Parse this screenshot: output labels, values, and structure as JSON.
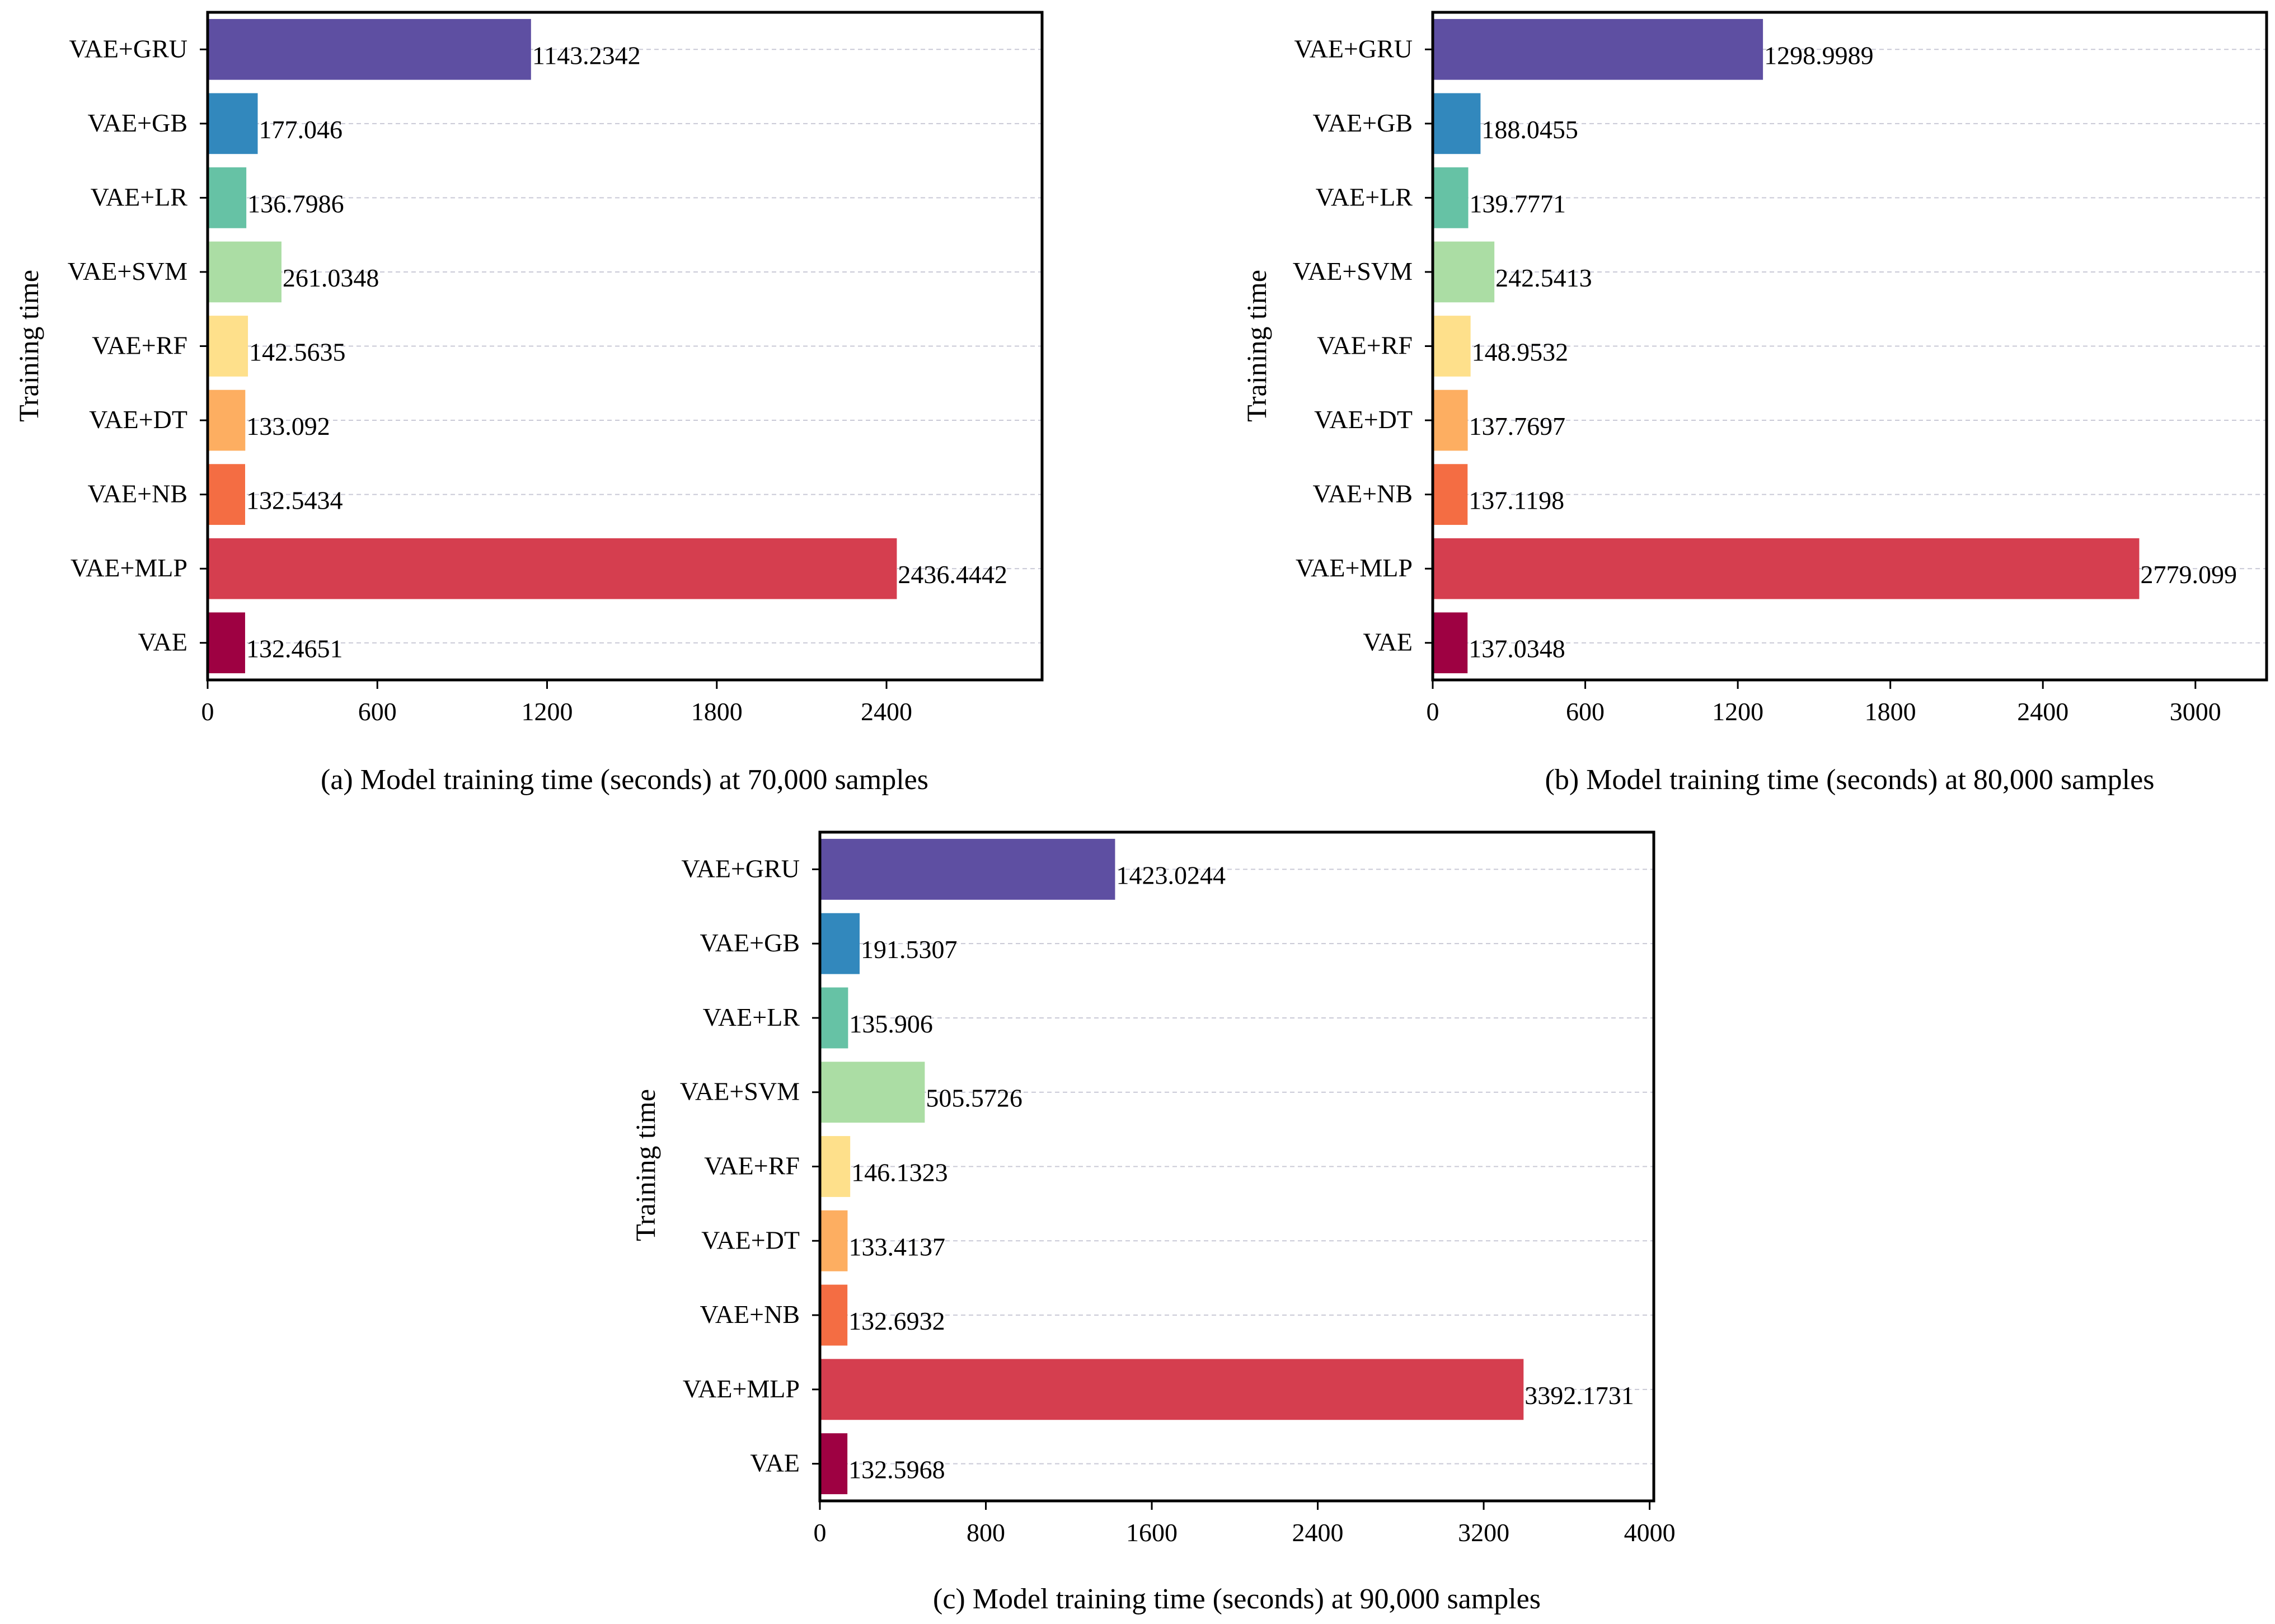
{
  "chart_data": [
    {
      "type": "bar",
      "orientation": "horizontal",
      "caption": "(a) Model training time (seconds) at 70,000 samples",
      "ylabel": "Training time",
      "xlabel": "",
      "xlim": [
        0,
        2950
      ],
      "xticks": [
        0,
        600,
        1200,
        1800,
        2400
      ],
      "xtick_labels": [
        "0",
        "600",
        "1200",
        "1800",
        "2400"
      ],
      "grid": "horizontal dashed",
      "categories": [
        "VAE+GRU",
        "VAE+GB",
        "VAE+LR",
        "VAE+SVM",
        "VAE+RF",
        "VAE+DT",
        "VAE+NB",
        "VAE+MLP",
        "VAE"
      ],
      "values": [
        1143.2342,
        177.046,
        136.7986,
        261.0348,
        142.5635,
        133.092,
        132.5434,
        2436.4442,
        132.4651
      ],
      "value_labels": [
        "1143.2342",
        "177.046",
        "136.7986",
        "261.0348",
        "142.5635",
        "133.092",
        "132.5434",
        "2436.4442",
        "132.4651"
      ],
      "colors": [
        "#5e4fa2",
        "#3288bd",
        "#66c2a5",
        "#abdda4",
        "#fee08b",
        "#fdae61",
        "#f46d43",
        "#d53e4f",
        "#9e0142"
      ]
    },
    {
      "type": "bar",
      "orientation": "horizontal",
      "caption": "(b) Model training time (seconds) at 80,000 samples",
      "ylabel": "Training time",
      "xlabel": "",
      "xlim": [
        0,
        3280
      ],
      "xticks": [
        0,
        600,
        1200,
        1800,
        2400,
        3000
      ],
      "xtick_labels": [
        "0",
        "600",
        "1200",
        "1800",
        "2400",
        "3000"
      ],
      "grid": "horizontal dashed",
      "categories": [
        "VAE+GRU",
        "VAE+GB",
        "VAE+LR",
        "VAE+SVM",
        "VAE+RF",
        "VAE+DT",
        "VAE+NB",
        "VAE+MLP",
        "VAE"
      ],
      "values": [
        1298.9989,
        188.0455,
        139.7771,
        242.5413,
        148.9532,
        137.7697,
        137.1198,
        2779.099,
        137.0348
      ],
      "value_labels": [
        "1298.9989",
        "188.0455",
        "139.7771",
        "242.5413",
        "148.9532",
        "137.7697",
        "137.1198",
        "2779.099",
        "137.0348"
      ],
      "colors": [
        "#5e4fa2",
        "#3288bd",
        "#66c2a5",
        "#abdda4",
        "#fee08b",
        "#fdae61",
        "#f46d43",
        "#d53e4f",
        "#9e0142"
      ]
    },
    {
      "type": "bar",
      "orientation": "horizontal",
      "caption": "(c) Model training time (seconds) at 90,000 samples",
      "ylabel": "Training time",
      "xlabel": "",
      "xlim": [
        0,
        4020
      ],
      "xticks": [
        0,
        800,
        1600,
        2400,
        3200,
        4000
      ],
      "xtick_labels": [
        "0",
        "800",
        "1600",
        "2400",
        "3200",
        "4000"
      ],
      "grid": "horizontal dashed",
      "categories": [
        "VAE+GRU",
        "VAE+GB",
        "VAE+LR",
        "VAE+SVM",
        "VAE+RF",
        "VAE+DT",
        "VAE+NB",
        "VAE+MLP",
        "VAE"
      ],
      "values": [
        1423.0244,
        191.5307,
        135.906,
        505.5726,
        146.1323,
        133.4137,
        132.6932,
        3392.1731,
        132.5968
      ],
      "value_labels": [
        "1423.0244",
        "191.5307",
        "135.906",
        "505.5726",
        "146.1323",
        "133.4137",
        "132.6932",
        "3392.1731",
        "132.5968"
      ],
      "colors": [
        "#5e4fa2",
        "#3288bd",
        "#66c2a5",
        "#abdda4",
        "#fee08b",
        "#fdae61",
        "#f46d43",
        "#d53e4f",
        "#9e0142"
      ]
    }
  ]
}
